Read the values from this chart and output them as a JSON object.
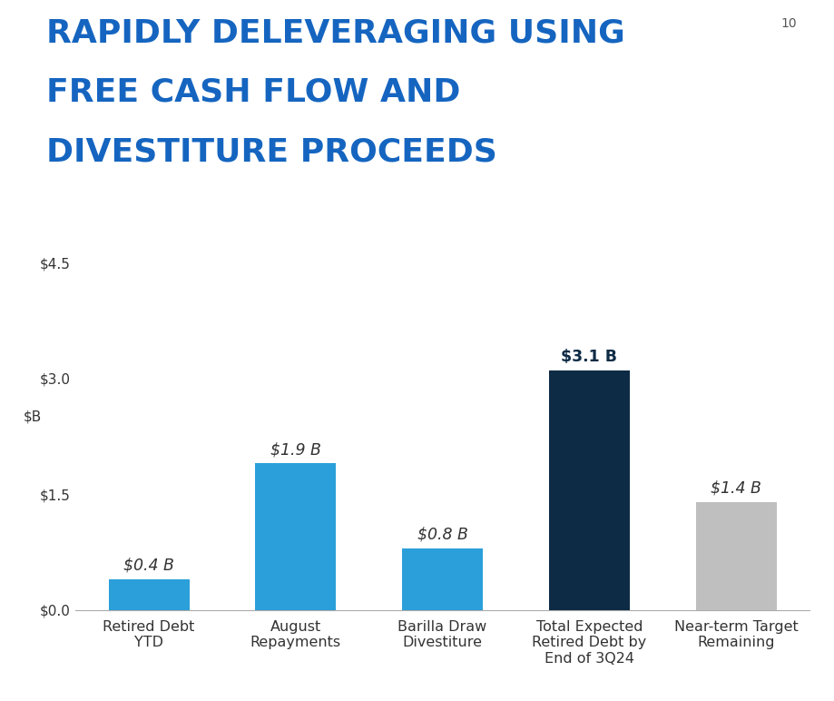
{
  "title_line1": "RAPIDLY DELEVERAGING USING",
  "title_line2": "FREE CASH FLOW AND",
  "title_line3": "DIVESTITURE PROCEEDS",
  "slide_number": "10",
  "categories": [
    "Retired Debt\nYTD",
    "August\nRepayments",
    "Barilla Draw\nDivestiture",
    "Total Expected\nRetired Debt by\nEnd of 3Q24",
    "Near-term Target\nRemaining"
  ],
  "values": [
    0.4,
    1.9,
    0.8,
    3.1,
    1.4
  ],
  "bar_colors": [
    "#2B9FD9",
    "#2B9FD9",
    "#2B9FD9",
    "#0D2B45",
    "#BFBFBF"
  ],
  "bar_labels": [
    "$0.4 B",
    "$1.9 B",
    "$0.8 B",
    "$3.1 B",
    "$1.4 B"
  ],
  "label_bold": [
    false,
    false,
    false,
    true,
    false
  ],
  "label_italic": [
    true,
    true,
    true,
    false,
    true
  ],
  "ylim": [
    0,
    5.0
  ],
  "yticks": [
    0.0,
    1.5,
    3.0,
    4.5
  ],
  "ytick_labels": [
    "$0.0",
    "$1.5",
    "$3.0",
    "$4.5"
  ],
  "title_color": "#1565C0",
  "title_fontsize": 26,
  "bar_label_fontsize": 12.5,
  "xlabel_fontsize": 11.5,
  "ylabel_fontsize": 11,
  "background_color": "#FFFFFF",
  "bar_label_color_default": "#333333",
  "bar_label_color_bold": "#0D2B45",
  "slide_number_fontsize": 10
}
